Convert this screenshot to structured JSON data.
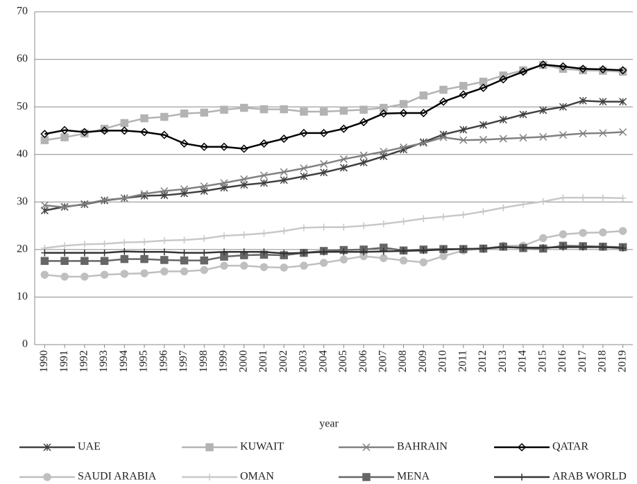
{
  "chart_data": {
    "type": "line",
    "x_label": "year",
    "categories": [
      "1990",
      "1991",
      "1992",
      "1993",
      "1994",
      "1995",
      "1996",
      "1997",
      "1998",
      "1999",
      "2000",
      "2001",
      "2002",
      "2003",
      "2004",
      "2005",
      "2006",
      "2007",
      "2008",
      "2009",
      "2010",
      "2011",
      "2012",
      "2013",
      "2014",
      "2015",
      "2016",
      "2017",
      "2018",
      "2019"
    ],
    "ylim": [
      0,
      70
    ],
    "yticks": [
      0,
      10,
      20,
      30,
      40,
      50,
      60,
      70
    ],
    "grid": true,
    "legend": "bottom",
    "series": [
      {
        "name": "UAE",
        "color": "#404040",
        "marker": "star",
        "values": [
          28.2,
          29,
          29.5,
          30.3,
          30.8,
          31.3,
          31.4,
          31.8,
          32.3,
          33,
          33.6,
          34,
          34.6,
          35.4,
          36.2,
          37.2,
          38.3,
          39.6,
          41,
          42.6,
          44.2,
          45.2,
          46.2,
          47.3,
          48.4,
          49.3,
          50,
          51.3,
          51.1,
          51.1
        ]
      },
      {
        "name": "KUWAIT",
        "color": "#b3b3b3",
        "marker": "square",
        "values": [
          43,
          43.6,
          44.4,
          45.4,
          46.6,
          47.6,
          47.9,
          48.6,
          48.8,
          49.4,
          49.8,
          49.5,
          49.5,
          49,
          49,
          49.2,
          49.4,
          49.8,
          50.6,
          52.4,
          53.6,
          54.4,
          55.3,
          56.6,
          57.7,
          58.8,
          58,
          57.7,
          57.6,
          57.4
        ]
      },
      {
        "name": "BAHRAIN",
        "color": "#808080",
        "marker": "x",
        "values": [
          29.3,
          28.9,
          29.6,
          30.4,
          30.8,
          31.7,
          32.3,
          32.7,
          33.3,
          34,
          34.8,
          35.6,
          36.3,
          37.1,
          38,
          39,
          39.8,
          40.6,
          41.5,
          42.4,
          43.6,
          43,
          43.1,
          43.3,
          43.5,
          43.7,
          44.1,
          44.4,
          44.5,
          44.7
        ]
      },
      {
        "name": "QATAR",
        "color": "#000000",
        "marker": "diamond",
        "values": [
          44.3,
          45.1,
          44.7,
          45,
          45,
          44.7,
          44.1,
          42.3,
          41.6,
          41.6,
          41.2,
          42.3,
          43.3,
          44.5,
          44.5,
          45.4,
          46.8,
          48.6,
          48.7,
          48.7,
          51.1,
          52.6,
          54,
          55.8,
          57.4,
          58.9,
          58.5,
          58,
          57.9,
          57.7
        ]
      },
      {
        "name": "SAUDI ARABIA",
        "color": "#bfbfbf",
        "marker": "circle",
        "values": [
          14.7,
          14.3,
          14.3,
          14.7,
          14.9,
          15,
          15.4,
          15.4,
          15.7,
          16.6,
          16.6,
          16.3,
          16.2,
          16.6,
          17.2,
          17.9,
          18.6,
          18.2,
          17.7,
          17.3,
          18.6,
          19.8,
          20.1,
          20.8,
          20.8,
          22.4,
          23.2,
          23.5,
          23.6,
          23.9
        ]
      },
      {
        "name": "OMAN",
        "color": "#c8c8c8",
        "marker": "plus",
        "values": [
          20.3,
          20.8,
          21.1,
          21.2,
          21.5,
          21.6,
          21.9,
          22,
          22.3,
          22.9,
          23.1,
          23.4,
          23.9,
          24.6,
          24.7,
          24.7,
          25,
          25.4,
          25.9,
          26.5,
          26.9,
          27.3,
          28,
          28.8,
          29.5,
          30.1,
          30.9,
          30.9,
          30.9,
          30.8
        ]
      },
      {
        "name": "MENA",
        "color": "#666666",
        "marker": "square",
        "values": [
          17.6,
          17.6,
          17.6,
          17.6,
          18,
          18,
          17.8,
          17.7,
          17.7,
          18.5,
          18.8,
          18.9,
          18.8,
          19.3,
          19.7,
          19.9,
          20,
          20.4,
          19.8,
          20,
          20.1,
          20.1,
          20.2,
          20.6,
          20.3,
          20.2,
          20.8,
          20.7,
          20.6,
          20.5
        ]
      },
      {
        "name": "ARAB WORLD",
        "color": "#333333",
        "marker": "plus",
        "values": [
          19.3,
          19.3,
          19.3,
          19.3,
          19.6,
          19.5,
          19.5,
          19.3,
          19.3,
          19.5,
          19.5,
          19.5,
          19.2,
          19.3,
          19.5,
          19.5,
          19.5,
          19.6,
          19.7,
          19.8,
          20,
          20.1,
          20.2,
          20.5,
          20.4,
          20.4,
          20.5,
          20.5,
          20.5,
          20.3
        ]
      }
    ]
  }
}
